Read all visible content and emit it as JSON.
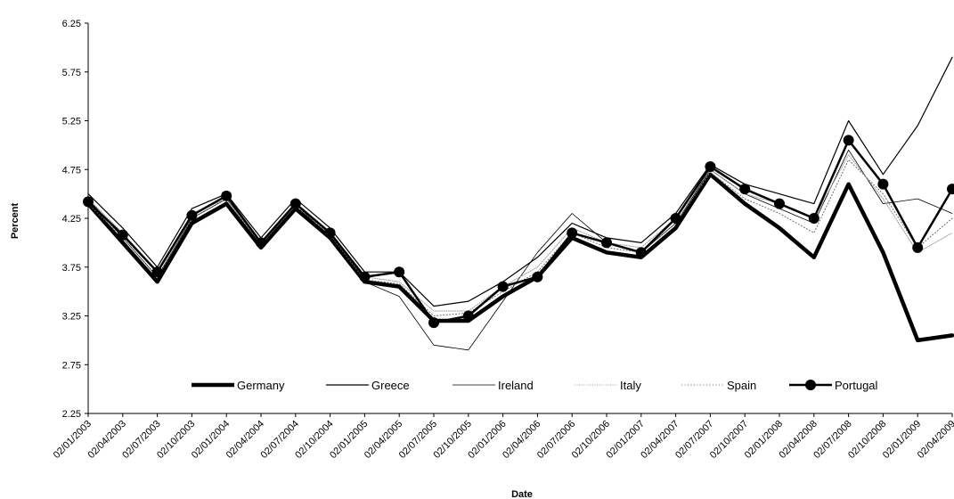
{
  "chart_data": {
    "type": "line",
    "xlabel": "Date",
    "ylabel": "Percent",
    "ylim": [
      2.25,
      6.25
    ],
    "y_ticks": [
      "2.25",
      "2.75",
      "3.25",
      "3.75",
      "4.25",
      "4.75",
      "5.25",
      "5.75",
      "6.25"
    ],
    "x_ticks": [
      "02/01/2003",
      "02/04/2003",
      "02/07/2003",
      "02/10/2003",
      "02/01/2004",
      "02/04/2004",
      "02/07/2004",
      "02/10/2004",
      "02/01/2005",
      "02/04/2005",
      "02/07/2005",
      "02/10/2005",
      "02/01/2006",
      "02/04/2006",
      "02/07/2006",
      "02/10/2006",
      "02/01/2007",
      "02/04/2007",
      "02/07/2007",
      "02/10/2007",
      "02/01/2008",
      "02/04/2008",
      "02/07/2008",
      "02/10/2008",
      "02/01/2009",
      "02/04/2009"
    ],
    "grid": false,
    "legend_position": "bottom-inside",
    "dates": [
      "02/01/2003",
      "02/04/2003",
      "02/07/2003",
      "02/10/2003",
      "02/01/2004",
      "02/04/2004",
      "02/07/2004",
      "02/10/2004",
      "02/01/2005",
      "02/04/2005",
      "02/07/2005",
      "02/10/2005",
      "02/01/2006",
      "02/04/2006",
      "02/07/2006",
      "02/10/2006",
      "02/01/2007",
      "02/04/2007",
      "02/07/2007",
      "02/10/2007",
      "02/01/2008",
      "02/04/2008",
      "02/07/2008",
      "02/10/2008",
      "02/01/2009",
      "02/04/2009"
    ],
    "series": [
      {
        "name": "Germany",
        "style": "thick",
        "color": "#000000",
        "values": [
          4.4,
          4.0,
          3.6,
          4.2,
          4.4,
          3.95,
          4.35,
          4.05,
          3.6,
          3.55,
          3.2,
          3.2,
          3.45,
          3.65,
          4.05,
          3.9,
          3.85,
          4.15,
          4.7,
          4.4,
          4.15,
          3.85,
          4.6,
          3.9,
          3.0,
          3.05
        ]
      },
      {
        "name": "Greece",
        "style": "solid",
        "color": "#000000",
        "values": [
          4.5,
          4.15,
          3.75,
          4.35,
          4.5,
          4.05,
          4.45,
          4.15,
          3.7,
          3.7,
          3.35,
          3.4,
          3.6,
          3.85,
          4.2,
          4.05,
          4.0,
          4.3,
          4.8,
          4.6,
          4.5,
          4.4,
          5.25,
          4.7,
          5.2,
          5.9
        ]
      },
      {
        "name": "Ireland",
        "style": "thin",
        "color": "#000000",
        "values": [
          4.45,
          4.05,
          3.65,
          4.25,
          4.45,
          4.0,
          4.4,
          4.05,
          3.6,
          3.45,
          2.95,
          2.9,
          3.4,
          3.9,
          4.3,
          4.0,
          3.9,
          4.2,
          4.75,
          4.5,
          4.35,
          4.2,
          4.95,
          4.4,
          4.45,
          4.3
        ]
      },
      {
        "name": "Italy",
        "style": "dotted",
        "color": "#999999",
        "values": [
          4.45,
          4.1,
          3.7,
          4.3,
          4.45,
          4.0,
          4.4,
          4.1,
          3.65,
          3.6,
          3.3,
          3.3,
          3.55,
          3.75,
          4.15,
          4.0,
          3.95,
          4.25,
          4.75,
          4.5,
          4.4,
          4.25,
          4.9,
          4.45,
          3.9,
          4.1
        ]
      },
      {
        "name": "Spain",
        "style": "dotted2",
        "color": "#666666",
        "values": [
          4.4,
          4.05,
          3.65,
          4.25,
          4.45,
          3.98,
          4.38,
          4.08,
          3.62,
          3.58,
          3.25,
          3.28,
          3.5,
          3.7,
          4.1,
          3.95,
          3.9,
          4.2,
          4.72,
          4.45,
          4.3,
          4.1,
          4.85,
          4.5,
          3.95,
          4.25
        ]
      },
      {
        "name": "Portugal",
        "style": "markers",
        "color": "#000000",
        "values": [
          4.42,
          4.08,
          3.7,
          4.28,
          4.48,
          4.0,
          4.4,
          4.1,
          3.65,
          3.7,
          3.18,
          3.25,
          3.55,
          3.65,
          4.1,
          4.0,
          3.9,
          4.25,
          4.78,
          4.55,
          4.4,
          4.25,
          5.05,
          4.6,
          3.95,
          4.55
        ]
      }
    ]
  }
}
